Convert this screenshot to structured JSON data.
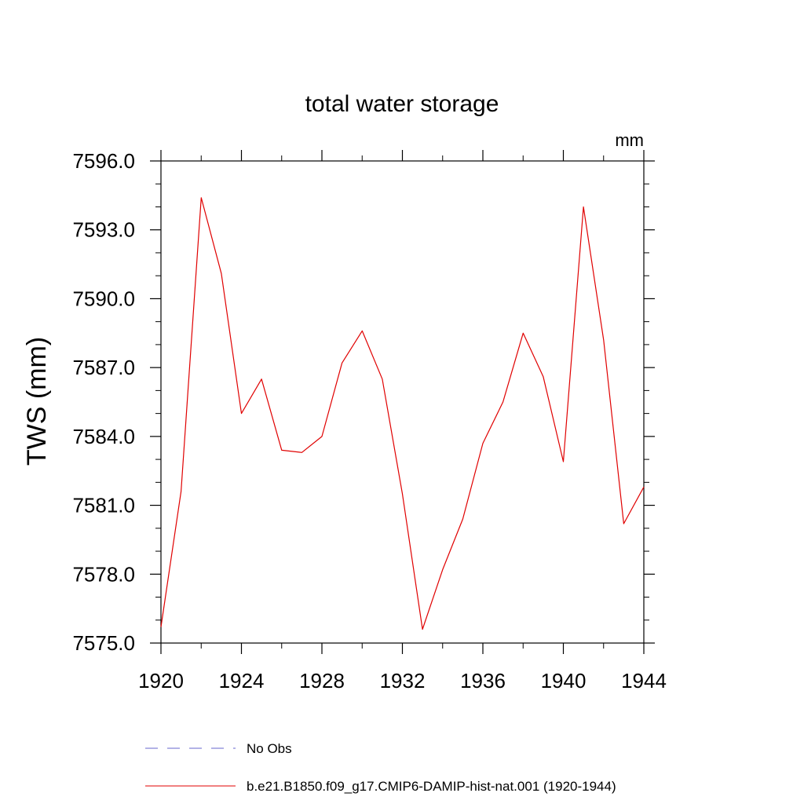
{
  "chart_data": {
    "type": "line",
    "title": "total water storage",
    "ylabel": "TWS  (mm)",
    "units": "mm",
    "xlim": [
      1920,
      1944
    ],
    "ylim": [
      7575.0,
      7596.0
    ],
    "x_ticks": [
      1920,
      1924,
      1928,
      1932,
      1936,
      1940,
      1944
    ],
    "x_tick_labels": [
      "1920",
      "1924",
      "1928",
      "1932",
      "1936",
      "1940",
      "1944"
    ],
    "y_ticks": [
      7575.0,
      7578.0,
      7581.0,
      7584.0,
      7587.0,
      7590.0,
      7593.0,
      7596.0
    ],
    "y_tick_labels": [
      "7575.0",
      "7578.0",
      "7581.0",
      "7584.0",
      "7587.0",
      "7590.0",
      "7593.0",
      "7596.0"
    ],
    "grid": false,
    "legend_position": "bottom",
    "series": [
      {
        "name": "No Obs",
        "color": "#6666cc",
        "style": "dashed",
        "x": [],
        "y": []
      },
      {
        "name": "b.e21.B1850.f09_g17.CMIP6-DAMIP-hist-nat.001 (1920-1944)",
        "color": "#e00000",
        "style": "solid",
        "x": [
          1920,
          1921,
          1922,
          1923,
          1924,
          1925,
          1926,
          1927,
          1928,
          1929,
          1930,
          1931,
          1932,
          1933,
          1934,
          1935,
          1936,
          1937,
          1938,
          1939,
          1940,
          1941,
          1942,
          1943,
          1944
        ],
        "y": [
          7575.7,
          7581.6,
          7594.4,
          7591.1,
          7585.0,
          7586.5,
          7583.4,
          7583.3,
          7584.0,
          7587.2,
          7588.6,
          7586.5,
          7581.5,
          7575.6,
          7578.2,
          7580.4,
          7583.7,
          7585.5,
          7588.5,
          7586.6,
          7582.9,
          7594.0,
          7588.2,
          7580.2,
          7581.8
        ]
      }
    ]
  }
}
